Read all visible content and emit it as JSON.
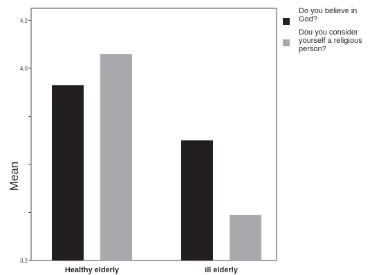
{
  "chart_data": {
    "type": "bar",
    "title": "",
    "xlabel": "",
    "ylabel": "Mean",
    "ylim": [
      3.2,
      4.25
    ],
    "grid": false,
    "legend_position": "right",
    "categories": [
      "Healthy elderly",
      "ill elderly"
    ],
    "series": [
      {
        "name": "Do you believe in God?",
        "color": "#231f20",
        "values": [
          3.93,
          3.7
        ]
      },
      {
        "name": "Dou you consider yourself a religious person?",
        "color": "#a7a9ac",
        "values": [
          4.06,
          3.39
        ]
      }
    ],
    "ytick_values": [
      3.2,
      3.4,
      3.6,
      3.8,
      4.0,
      4.2
    ],
    "ytick_labels": [
      "3,2",
      "",
      "",
      "",
      "4,0",
      "4,2"
    ]
  }
}
